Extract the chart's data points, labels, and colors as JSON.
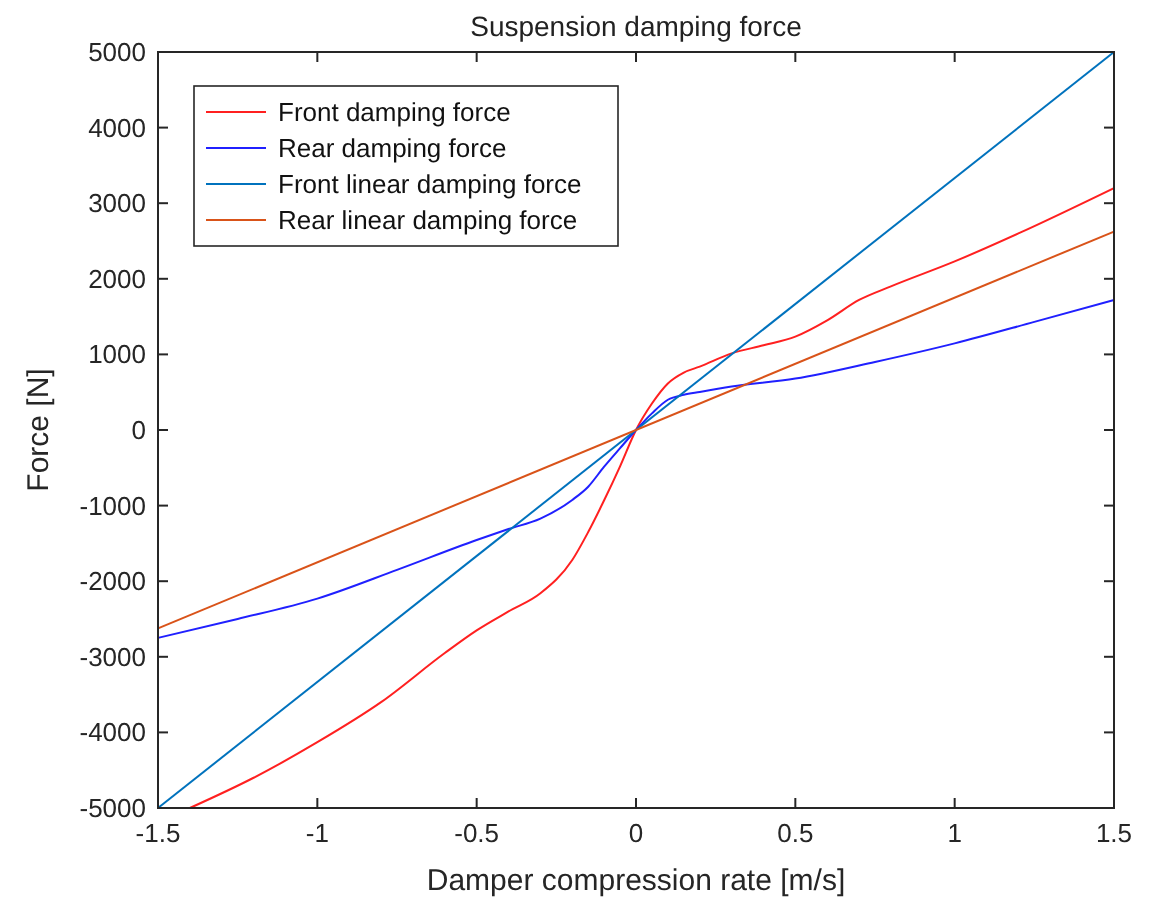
{
  "chart_data": {
    "type": "line",
    "title": "Suspension damping force",
    "xlabel": "Damper compression rate [m/s]",
    "ylabel": "Force [N]",
    "xlim": [
      -1.5,
      1.5
    ],
    "xticks": [
      -1.5,
      -1,
      -0.5,
      0,
      0.5,
      1,
      1.5
    ],
    "ylim": [
      -5000,
      5000
    ],
    "yticks": [
      -5000,
      -4000,
      -3000,
      -2000,
      -1000,
      0,
      1000,
      2000,
      3000,
      4000,
      5000
    ],
    "grid": false,
    "legend": "top left",
    "line_style": "solid",
    "marker": "none",
    "series": [
      {
        "name": "Front damping force",
        "color": "#ff2020",
        "x": [
          -1.4,
          -1.2,
          -1,
          -0.8,
          -0.6,
          -0.5,
          -0.4,
          -0.3,
          -0.2,
          -0.15,
          -0.1,
          -0.05,
          0,
          0.05,
          0.1,
          0.15,
          0.2,
          0.3,
          0.4,
          0.5,
          0.6,
          0.7,
          0.8,
          1,
          1.2,
          1.5
        ],
        "values": [
          -5000,
          -4600,
          -4130,
          -3600,
          -2950,
          -2650,
          -2400,
          -2160,
          -1720,
          -1350,
          -930,
          -480,
          0,
          350,
          616,
          760,
          838,
          1013,
          1120,
          1235,
          1450,
          1720,
          1900,
          2230,
          2600,
          3200
        ]
      },
      {
        "name": "Rear damping force",
        "color": "#2020ff",
        "x": [
          -1.5,
          -1.25,
          -1,
          -0.75,
          -0.5,
          -0.4,
          -0.3,
          -0.2,
          -0.15,
          -0.1,
          -0.05,
          0,
          0.05,
          0.1,
          0.15,
          0.2,
          0.3,
          0.5,
          0.75,
          1,
          1.25,
          1.5
        ],
        "values": [
          -2750,
          -2500,
          -2230,
          -1850,
          -1455,
          -1310,
          -1172,
          -925,
          -750,
          -485,
          -240,
          0,
          220,
          400,
          465,
          503,
          574,
          680,
          900,
          1146,
          1430,
          1720
        ]
      },
      {
        "name": "Front linear damping force",
        "color": "#0072bd",
        "x": [
          -1.5,
          1.5
        ],
        "values": [
          -5000,
          5000
        ]
      },
      {
        "name": "Rear linear damping force",
        "color": "#d95319",
        "x": [
          -1.5,
          1.5
        ],
        "values": [
          -2625,
          2625
        ]
      }
    ]
  }
}
